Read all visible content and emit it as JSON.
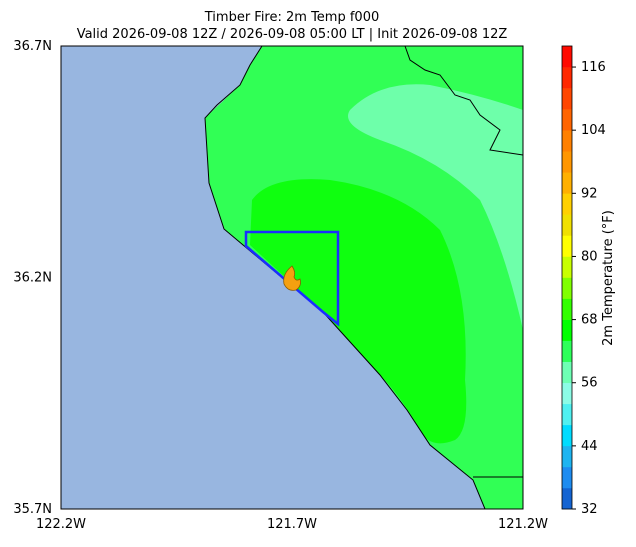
{
  "title": "Timber Fire: 2m Temp f000",
  "subtitle": "Valid 2026-09-08 12Z / 2026-09-08 05:00 LT | Init 2026-09-08 12Z",
  "map": {
    "lat_labels": [
      "36.7N",
      "36.2N",
      "35.7N"
    ],
    "lon_labels": [
      "122.2W",
      "121.7W",
      "121.2W"
    ]
  },
  "colorbar": {
    "label": "2m Temperature (°F)",
    "range": [
      32,
      120
    ],
    "ticks": [
      32,
      44,
      56,
      68,
      80,
      92,
      104,
      116
    ],
    "colors": [
      "#1464d2",
      "#1e8cf0",
      "#1eb4f0",
      "#00dcff",
      "#50f0f0",
      "#8cfce6",
      "#6effb4",
      "#2dff5a",
      "#00ff00",
      "#33ff00",
      "#80ff00",
      "#c8ff00",
      "#ffff00",
      "#f0e000",
      "#ffd000",
      "#ffb000",
      "#ff9600",
      "#ff8000",
      "#ff6400",
      "#ff4600",
      "#ff2800",
      "#ff0a00"
    ]
  }
}
